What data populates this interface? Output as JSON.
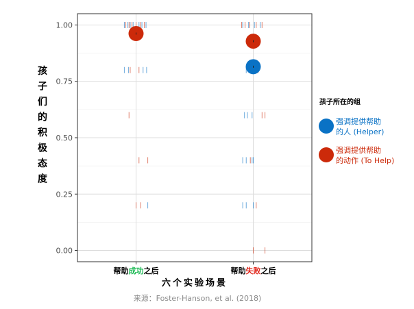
{
  "chart_data": {
    "type": "scatter",
    "ylabel": "孩子们的积极态度",
    "xlabel": "六个实验场景",
    "source": "来源：Foster-Hanson, et al. (2018)",
    "ylim": [
      -0.05,
      1.05
    ],
    "yticks": [
      0.0,
      0.25,
      0.5,
      0.75,
      1.0
    ],
    "ytick_labels": [
      "0.00",
      "0.25",
      "0.50",
      "0.75",
      "1.00"
    ],
    "categories": [
      {
        "key": "success",
        "parts": [
          "帮助",
          "成功",
          "之后"
        ],
        "highlight_color": "#1db954"
      },
      {
        "key": "failure",
        "parts": [
          "帮助",
          "失败",
          "之后"
        ],
        "highlight_color": "#e0261b"
      }
    ],
    "legend": {
      "title": "孩子所在的组",
      "placement": "right",
      "items": [
        {
          "line1": "强调提供帮助",
          "line2": "的人 (Helper)",
          "color": "#0a72c5"
        },
        {
          "line1": "强调提供帮助",
          "line2": "的动作 (To Help)",
          "color": "#cc2a0a"
        }
      ]
    },
    "series": [
      {
        "name": "强调提供帮助的人 (Helper)",
        "color": "#0a72c5",
        "means": [
          null,
          0.815
        ],
        "mean_errors": [
          null,
          0.0
        ],
        "ticks": [
          [
            {
              "y": 1.0,
              "x_offset": -0.2
            },
            {
              "y": 1.0,
              "x_offset": -0.15
            },
            {
              "y": 1.0,
              "x_offset": -0.1
            },
            {
              "y": 1.0,
              "x_offset": -0.05
            },
            {
              "y": 1.0,
              "x_offset": 0.05
            },
            {
              "y": 1.0,
              "x_offset": 0.1
            },
            {
              "y": 1.0,
              "x_offset": 0.17
            },
            {
              "y": 0.8,
              "x_offset": -0.2
            },
            {
              "y": 0.8,
              "x_offset": -0.13
            },
            {
              "y": 0.8,
              "x_offset": 0.12
            },
            {
              "y": 0.8,
              "x_offset": 0.18
            },
            {
              "y": 0.2,
              "x_offset": 0.2
            }
          ],
          [
            {
              "y": 1.0,
              "x_offset": -0.18
            },
            {
              "y": 1.0,
              "x_offset": -0.08
            },
            {
              "y": 1.0,
              "x_offset": 0.02
            },
            {
              "y": 1.0,
              "x_offset": 0.12
            },
            {
              "y": 0.8,
              "x_offset": -0.12
            },
            {
              "y": 0.8,
              "x_offset": -0.05
            },
            {
              "y": 0.8,
              "x_offset": 0.03
            },
            {
              "y": 0.6,
              "x_offset": -0.15
            },
            {
              "y": 0.6,
              "x_offset": -0.1
            },
            {
              "y": 0.6,
              "x_offset": -0.02
            },
            {
              "y": 0.4,
              "x_offset": -0.18
            },
            {
              "y": 0.4,
              "x_offset": -0.12
            },
            {
              "y": 0.4,
              "x_offset": -0.02
            },
            {
              "y": 0.4,
              "x_offset": 0.0
            },
            {
              "y": 0.2,
              "x_offset": -0.18
            },
            {
              "y": 0.2,
              "x_offset": -0.12
            },
            {
              "y": 0.2,
              "x_offset": 0.0
            }
          ]
        ]
      },
      {
        "name": "强调提供帮助的动作 (To Help)",
        "color": "#cc2a0a",
        "means": [
          0.962,
          0.928
        ],
        "mean_errors": [
          0.0,
          0.0
        ],
        "ticks": [
          [
            {
              "y": 1.0,
              "x_offset": -0.18
            },
            {
              "y": 1.0,
              "x_offset": -0.12
            },
            {
              "y": 1.0,
              "x_offset": -0.07
            },
            {
              "y": 1.0,
              "x_offset": 0.0
            },
            {
              "y": 1.0,
              "x_offset": 0.07
            },
            {
              "y": 1.0,
              "x_offset": 0.14
            },
            {
              "y": 0.8,
              "x_offset": -0.1
            },
            {
              "y": 0.8,
              "x_offset": 0.05
            },
            {
              "y": 0.6,
              "x_offset": -0.12
            },
            {
              "y": 0.4,
              "x_offset": 0.05
            },
            {
              "y": 0.4,
              "x_offset": 0.2
            },
            {
              "y": 0.2,
              "x_offset": 0.0
            },
            {
              "y": 0.2,
              "x_offset": 0.08
            }
          ],
          [
            {
              "y": 1.0,
              "x_offset": -0.2
            },
            {
              "y": 1.0,
              "x_offset": -0.14
            },
            {
              "y": 1.0,
              "x_offset": -0.06
            },
            {
              "y": 1.0,
              "x_offset": 0.05
            },
            {
              "y": 1.0,
              "x_offset": 0.15
            },
            {
              "y": 0.8,
              "x_offset": 0.0
            },
            {
              "y": 0.8,
              "x_offset": 0.08
            },
            {
              "y": 0.6,
              "x_offset": 0.15
            },
            {
              "y": 0.6,
              "x_offset": 0.2
            },
            {
              "y": 0.4,
              "x_offset": -0.05
            },
            {
              "y": 0.2,
              "x_offset": 0.05
            },
            {
              "y": 0.0,
              "x_offset": 0.0
            },
            {
              "y": 0.0,
              "x_offset": 0.2
            }
          ]
        ]
      }
    ],
    "grid": true
  }
}
